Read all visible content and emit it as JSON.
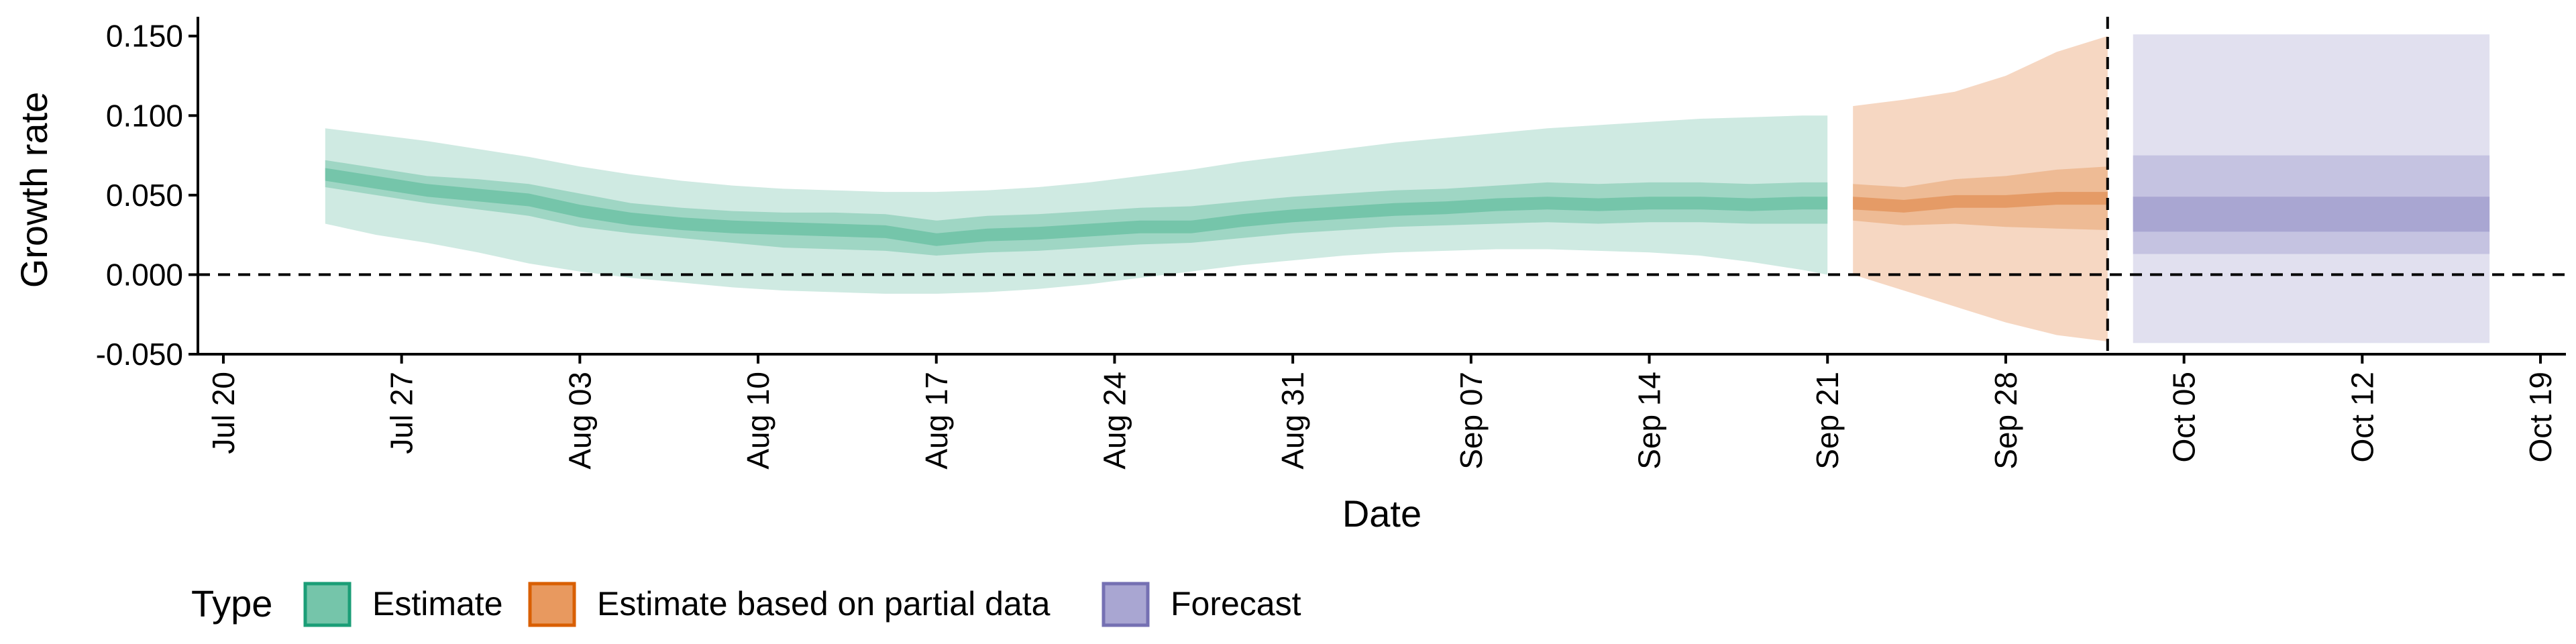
{
  "chart_data": {
    "type": "area",
    "xlabel": "Date",
    "ylabel": "Growth rate",
    "ylim": [
      -0.05,
      0.16
    ],
    "y_ticks": [
      "-0.050",
      "0.000",
      "0.050",
      "0.100",
      "0.150"
    ],
    "y_tick_values": [
      -0.05,
      0.0,
      0.05,
      0.1,
      0.15
    ],
    "x_range": [
      "2020-07-19",
      "2020-10-20"
    ],
    "x_ticks": [
      "Jul 20",
      "Jul 27",
      "Aug 03",
      "Aug 10",
      "Aug 17",
      "Aug 24",
      "Aug 31",
      "Sep 07",
      "Sep 14",
      "Sep 21",
      "Sep 28",
      "Oct 05",
      "Oct 12",
      "Oct 19"
    ],
    "x_tick_dates": [
      "2020-07-20",
      "2020-07-27",
      "2020-08-03",
      "2020-08-10",
      "2020-08-17",
      "2020-08-24",
      "2020-08-31",
      "2020-09-07",
      "2020-09-14",
      "2020-09-21",
      "2020-09-28",
      "2020-10-05",
      "2020-10-12",
      "2020-10-19"
    ],
    "reference_lines": {
      "y": 0.0,
      "x": "2020-10-02"
    },
    "legend": {
      "title": "Type",
      "position": "bottom"
    },
    "series": [
      {
        "name": "Estimate",
        "color": "#1b9e77",
        "dates": [
          "2020-07-24",
          "2020-07-26",
          "2020-07-28",
          "2020-07-30",
          "2020-08-01",
          "2020-08-03",
          "2020-08-05",
          "2020-08-07",
          "2020-08-09",
          "2020-08-11",
          "2020-08-13",
          "2020-08-15",
          "2020-08-17",
          "2020-08-19",
          "2020-08-21",
          "2020-08-23",
          "2020-08-25",
          "2020-08-27",
          "2020-08-29",
          "2020-08-31",
          "2020-09-02",
          "2020-09-04",
          "2020-09-06",
          "2020-09-08",
          "2020-09-10",
          "2020-09-12",
          "2020-09-14",
          "2020-09-16",
          "2020-09-18",
          "2020-09-20",
          "2020-09-21"
        ],
        "median": [
          0.063,
          0.058,
          0.053,
          0.05,
          0.047,
          0.04,
          0.035,
          0.032,
          0.03,
          0.029,
          0.028,
          0.027,
          0.022,
          0.025,
          0.026,
          0.028,
          0.03,
          0.03,
          0.034,
          0.037,
          0.039,
          0.041,
          0.042,
          0.044,
          0.045,
          0.044,
          0.045,
          0.045,
          0.044,
          0.045,
          0.045
        ],
        "inner_lower": [
          0.055,
          0.05,
          0.045,
          0.041,
          0.037,
          0.03,
          0.026,
          0.023,
          0.02,
          0.017,
          0.016,
          0.015,
          0.012,
          0.014,
          0.015,
          0.017,
          0.019,
          0.02,
          0.023,
          0.026,
          0.028,
          0.03,
          0.031,
          0.032,
          0.033,
          0.032,
          0.033,
          0.033,
          0.032,
          0.032,
          0.032
        ],
        "inner_upper": [
          0.072,
          0.067,
          0.062,
          0.06,
          0.057,
          0.051,
          0.045,
          0.042,
          0.04,
          0.039,
          0.039,
          0.038,
          0.034,
          0.037,
          0.038,
          0.04,
          0.042,
          0.043,
          0.046,
          0.049,
          0.051,
          0.053,
          0.054,
          0.056,
          0.058,
          0.057,
          0.058,
          0.058,
          0.057,
          0.058,
          0.058
        ],
        "outer_lower": [
          0.032,
          0.025,
          0.02,
          0.014,
          0.007,
          0.002,
          -0.002,
          -0.005,
          -0.008,
          -0.01,
          -0.011,
          -0.012,
          -0.012,
          -0.011,
          -0.009,
          -0.006,
          -0.002,
          0.002,
          0.006,
          0.009,
          0.012,
          0.014,
          0.015,
          0.016,
          0.016,
          0.015,
          0.014,
          0.012,
          0.008,
          0.003,
          0.0
        ],
        "outer_upper": [
          0.092,
          0.088,
          0.084,
          0.079,
          0.074,
          0.068,
          0.063,
          0.059,
          0.056,
          0.054,
          0.053,
          0.052,
          0.052,
          0.053,
          0.055,
          0.058,
          0.062,
          0.066,
          0.071,
          0.075,
          0.079,
          0.083,
          0.086,
          0.089,
          0.092,
          0.094,
          0.096,
          0.098,
          0.099,
          0.1,
          0.1
        ]
      },
      {
        "name": "Estimate based on partial data",
        "color": "#d95f02",
        "dates": [
          "2020-09-22",
          "2020-09-24",
          "2020-09-26",
          "2020-09-28",
          "2020-09-30",
          "2020-10-02"
        ],
        "median": [
          0.045,
          0.043,
          0.046,
          0.046,
          0.048,
          0.048
        ],
        "inner_lower": [
          0.034,
          0.031,
          0.032,
          0.03,
          0.029,
          0.028
        ],
        "inner_upper": [
          0.057,
          0.055,
          0.06,
          0.062,
          0.066,
          0.068
        ],
        "outer_lower": [
          0.0,
          -0.01,
          -0.02,
          -0.03,
          -0.038,
          -0.042
        ],
        "outer_upper": [
          0.106,
          0.11,
          0.115,
          0.125,
          0.14,
          0.15
        ]
      },
      {
        "name": "Forecast",
        "color": "#7570b3",
        "dates": [
          "2020-10-03",
          "2020-10-17"
        ],
        "median": [
          0.048,
          0.048
        ],
        "inner_lower": [
          0.027,
          0.027
        ],
        "inner_upper": [
          0.049,
          0.049
        ],
        "mid_lower": [
          0.013,
          0.013
        ],
        "mid_upper": [
          0.075,
          0.075
        ],
        "outer_lower": [
          -0.043,
          -0.043
        ],
        "outer_upper": [
          0.151,
          0.151
        ]
      }
    ]
  }
}
